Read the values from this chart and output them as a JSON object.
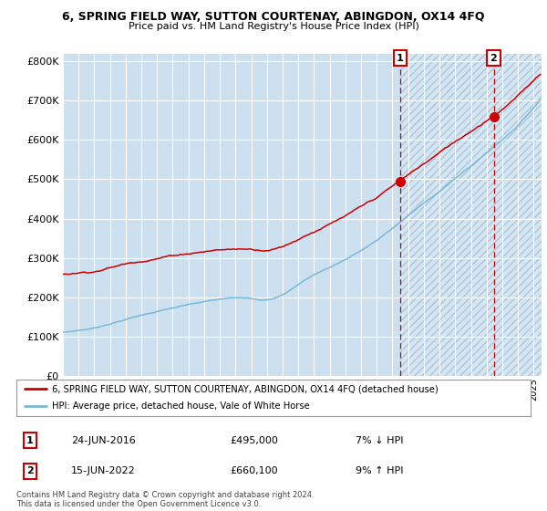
{
  "title": "6, SPRING FIELD WAY, SUTTON COURTENAY, ABINGDON, OX14 4FQ",
  "subtitle": "Price paid vs. HM Land Registry's House Price Index (HPI)",
  "legend_line1": "6, SPRING FIELD WAY, SUTTON COURTENAY, ABINGDON, OX14 4FQ (detached house)",
  "legend_line2": "HPI: Average price, detached house, Vale of White Horse",
  "annotation1_date": "24-JUN-2016",
  "annotation1_price": "£495,000",
  "annotation1_hpi": "7% ↓ HPI",
  "annotation2_date": "15-JUN-2022",
  "annotation2_price": "£660,100",
  "annotation2_hpi": "9% ↑ HPI",
  "footnote": "Contains HM Land Registry data © Crown copyright and database right 2024.\nThis data is licensed under the Open Government Licence v3.0.",
  "ylim": [
    0,
    820000
  ],
  "yticks": [
    0,
    100000,
    200000,
    300000,
    400000,
    500000,
    600000,
    700000,
    800000
  ],
  "ytick_labels": [
    "£0",
    "£100K",
    "£200K",
    "£300K",
    "£400K",
    "£500K",
    "£600K",
    "£700K",
    "£800K"
  ],
  "hpi_color": "#7ab8d9",
  "price_color": "#cc0000",
  "marker_color": "#cc0000",
  "dashed_line_color": "#cc0000",
  "bg_color": "#cce0f0",
  "grid_color": "#ffffff",
  "sale1_x_year": 2016.48,
  "sale1_y": 495000,
  "sale2_x_year": 2022.45,
  "sale2_y": 660100,
  "xlim_start": 1995,
  "xlim_end": 2025.5,
  "shade_start": 2016.48
}
